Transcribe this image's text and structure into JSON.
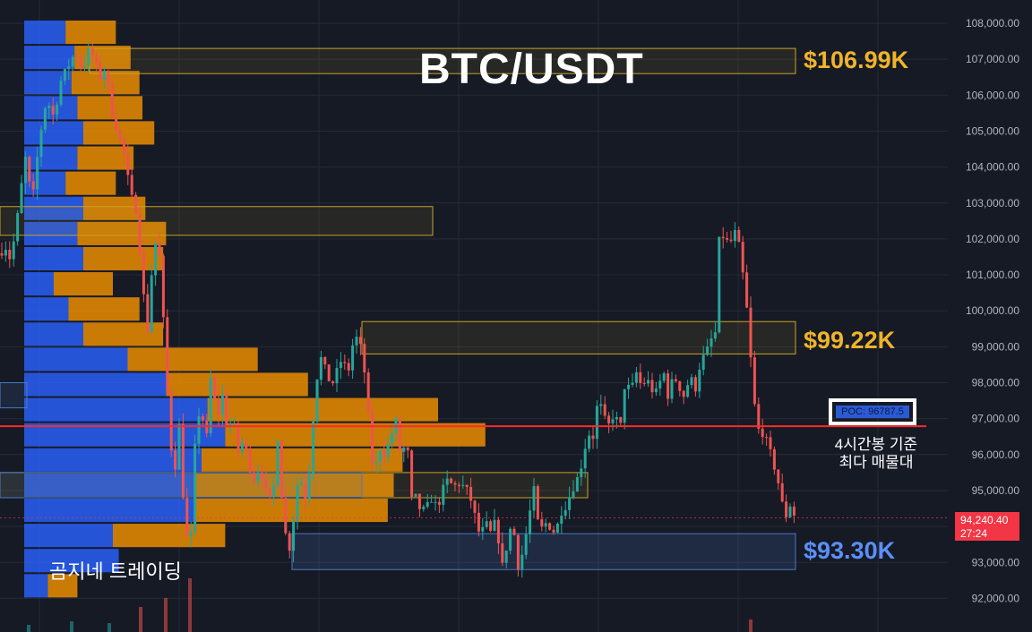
{
  "title": "BTC/USDT",
  "levels": [
    {
      "label": "$106.99K",
      "price": 106990,
      "color": "#f0b429"
    },
    {
      "label": "$99.22K",
      "price": 99220,
      "color": "#f0b429"
    },
    {
      "label": "$93.30K",
      "price": 93300,
      "color": "#5b8ff9"
    }
  ],
  "poc": {
    "label": "POC: 96787.5",
    "price": 96787.5,
    "note": "4시간봉 기준 최다 매물대"
  },
  "brand": "곰지네 트레이딩",
  "current_price": {
    "value": 94240.4,
    "label": "94,240.40",
    "countdown": "27:24"
  },
  "colors": {
    "background": "#161a25",
    "up": "#26a69a",
    "down": "#ef5350",
    "poc_line": "#ff2a2a",
    "vp_buy": "#2962ff",
    "vp_sell": "#f29100",
    "zone_gold": "#c9a227",
    "zone_blue": "#4a78c8",
    "axis_text": "#b2b5be"
  },
  "chart_data": {
    "type": "candlestick",
    "title": "BTC/USDT",
    "interval": "4시간봉",
    "y_axis": {
      "position": "right",
      "range": [
        91500,
        108300
      ],
      "ticks": [
        108000,
        107000,
        106000,
        105000,
        104000,
        103000,
        102000,
        101000,
        100000,
        99000,
        98000,
        97000,
        96000,
        95000,
        94000,
        93000,
        92000
      ],
      "tick_labels": [
        "108,000.00",
        "107,000.00",
        "106,000.00",
        "105,000.00",
        "104,000.00",
        "103,000.00",
        "102,000.00",
        "101,000.00",
        "100,000.00",
        "99,000.00",
        "98,000.00",
        "97,000.00",
        "96,000.00",
        "95,000.00",
        "94,000.00",
        "93,000.00",
        "92,000.00"
      ]
    },
    "grid": true,
    "candle_path": [
      [
        0,
        101600
      ],
      [
        6,
        101800
      ],
      [
        12,
        101400
      ],
      [
        20,
        102700
      ],
      [
        28,
        104300
      ],
      [
        36,
        103000
      ],
      [
        44,
        104800
      ],
      [
        52,
        105900
      ],
      [
        60,
        105400
      ],
      [
        68,
        106400
      ],
      [
        76,
        106800
      ],
      [
        84,
        107200
      ],
      [
        92,
        106700
      ],
      [
        100,
        107300
      ],
      [
        106,
        106900
      ],
      [
        112,
        106500
      ],
      [
        118,
        106800
      ],
      [
        124,
        105600
      ],
      [
        130,
        105100
      ],
      [
        138,
        104400
      ],
      [
        146,
        103200
      ],
      [
        152,
        102800
      ],
      [
        158,
        101200
      ],
      [
        164,
        99200
      ],
      [
        170,
        101300
      ],
      [
        176,
        102300
      ],
      [
        182,
        99900
      ],
      [
        188,
        97200
      ],
      [
        194,
        95300
      ],
      [
        200,
        96800
      ],
      [
        206,
        94200
      ],
      [
        212,
        93100
      ],
      [
        218,
        96400
      ],
      [
        224,
        97500
      ],
      [
        230,
        96200
      ],
      [
        236,
        98400
      ],
      [
        242,
        96900
      ],
      [
        248,
        97700
      ],
      [
        254,
        96700
      ],
      [
        260,
        97000
      ],
      [
        266,
        96100
      ],
      [
        272,
        96400
      ],
      [
        278,
        95700
      ],
      [
        284,
        95300
      ],
      [
        290,
        95700
      ],
      [
        296,
        95000
      ],
      [
        304,
        94600
      ],
      [
        310,
        96500
      ],
      [
        316,
        94300
      ],
      [
        322,
        93200
      ],
      [
        328,
        94300
      ],
      [
        334,
        95600
      ],
      [
        340,
        94700
      ],
      [
        346,
        95700
      ],
      [
        352,
        97900
      ],
      [
        358,
        98700
      ],
      [
        364,
        98300
      ],
      [
        370,
        97900
      ],
      [
        376,
        98300
      ],
      [
        382,
        98700
      ],
      [
        388,
        98200
      ],
      [
        394,
        99100
      ],
      [
        400,
        99300
      ],
      [
        406,
        98500
      ],
      [
        410,
        97500
      ],
      [
        414,
        96000
      ],
      [
        418,
        95500
      ],
      [
        424,
        96200
      ],
      [
        430,
        96000
      ],
      [
        436,
        96500
      ],
      [
        442,
        96900
      ],
      [
        448,
        95800
      ],
      [
        454,
        96600
      ],
      [
        458,
        94700
      ],
      [
        464,
        94800
      ],
      [
        470,
        94400
      ],
      [
        476,
        94500
      ],
      [
        482,
        94800
      ],
      [
        488,
        94500
      ],
      [
        494,
        95000
      ],
      [
        500,
        95300
      ],
      [
        506,
        95100
      ],
      [
        512,
        95200
      ],
      [
        518,
        95100
      ],
      [
        524,
        94900
      ],
      [
        530,
        94300
      ],
      [
        536,
        93700
      ],
      [
        542,
        94100
      ],
      [
        548,
        93800
      ],
      [
        554,
        94200
      ],
      [
        560,
        92800
      ],
      [
        566,
        93500
      ],
      [
        572,
        94200
      ],
      [
        578,
        92900
      ],
      [
        584,
        93300
      ],
      [
        590,
        94200
      ],
      [
        596,
        95000
      ],
      [
        602,
        93800
      ],
      [
        608,
        94100
      ],
      [
        614,
        94000
      ],
      [
        620,
        93800
      ],
      [
        626,
        94400
      ],
      [
        632,
        94600
      ],
      [
        638,
        95000
      ],
      [
        644,
        95300
      ],
      [
        650,
        95800
      ],
      [
        656,
        96600
      ],
      [
        662,
        96500
      ],
      [
        668,
        97600
      ],
      [
        674,
        97000
      ],
      [
        680,
        96800
      ],
      [
        686,
        97200
      ],
      [
        692,
        96600
      ],
      [
        698,
        98100
      ],
      [
        704,
        97700
      ],
      [
        710,
        98300
      ],
      [
        716,
        97900
      ],
      [
        722,
        98100
      ],
      [
        728,
        97800
      ],
      [
        734,
        97700
      ],
      [
        740,
        98400
      ],
      [
        746,
        97600
      ],
      [
        752,
        98200
      ],
      [
        758,
        97900
      ],
      [
        764,
        97600
      ],
      [
        770,
        98200
      ],
      [
        776,
        97800
      ],
      [
        782,
        98600
      ],
      [
        788,
        98800
      ],
      [
        794,
        99200
      ],
      [
        798,
        99100
      ],
      [
        802,
        101900
      ],
      [
        808,
        102100
      ],
      [
        814,
        101800
      ],
      [
        820,
        102200
      ],
      [
        826,
        101700
      ],
      [
        832,
        100400
      ],
      [
        836,
        99500
      ],
      [
        840,
        97800
      ],
      [
        846,
        96700
      ],
      [
        852,
        96600
      ],
      [
        858,
        96200
      ],
      [
        864,
        95700
      ],
      [
        870,
        95100
      ],
      [
        876,
        94200
      ],
      [
        882,
        94600
      ],
      [
        888,
        94240
      ]
    ],
    "volume_profile": {
      "buy_color": "#2962ff",
      "sell_color": "#f29100",
      "rows": [
        {
          "price_low": 92000,
          "price_high": 92700,
          "buy": 8,
          "sell": 10
        },
        {
          "price_low": 92700,
          "price_high": 93400,
          "buy": 32,
          "sell": 0
        },
        {
          "price_low": 93400,
          "price_high": 94100,
          "buy": 30,
          "sell": 38
        },
        {
          "price_low": 94100,
          "price_high": 94800,
          "buy": 58,
          "sell": 65
        },
        {
          "price_low": 94800,
          "price_high": 95500,
          "buy": 58,
          "sell": 67
        },
        {
          "price_low": 95500,
          "price_high": 96200,
          "buy": 60,
          "sell": 68
        },
        {
          "price_low": 96200,
          "price_high": 96900,
          "buy": 68,
          "sell": 88
        },
        {
          "price_low": 96900,
          "price_high": 97600,
          "buy": 62,
          "sell": 78
        },
        {
          "price_low": 97600,
          "price_high": 98300,
          "buy": 48,
          "sell": 48
        },
        {
          "price_low": 98300,
          "price_high": 99000,
          "buy": 35,
          "sell": 44
        },
        {
          "price_low": 99000,
          "price_high": 99700,
          "buy": 20,
          "sell": 27
        },
        {
          "price_low": 99700,
          "price_high": 100400,
          "buy": 15,
          "sell": 24
        },
        {
          "price_low": 100400,
          "price_high": 101100,
          "buy": 10,
          "sell": 20
        },
        {
          "price_low": 101100,
          "price_high": 101800,
          "buy": 20,
          "sell": 27
        },
        {
          "price_low": 101800,
          "price_high": 102500,
          "buy": 18,
          "sell": 30
        },
        {
          "price_low": 102500,
          "price_high": 103200,
          "buy": 20,
          "sell": 21
        },
        {
          "price_low": 103200,
          "price_high": 103900,
          "buy": 14,
          "sell": 17
        },
        {
          "price_low": 103900,
          "price_high": 104600,
          "buy": 18,
          "sell": 19
        },
        {
          "price_low": 104600,
          "price_high": 105300,
          "buy": 20,
          "sell": 24
        },
        {
          "price_low": 105300,
          "price_high": 106000,
          "buy": 18,
          "sell": 22
        },
        {
          "price_low": 106000,
          "price_high": 106700,
          "buy": 16,
          "sell": 23
        },
        {
          "price_low": 106700,
          "price_high": 107400,
          "buy": 17,
          "sell": 19
        },
        {
          "price_low": 107400,
          "price_high": 108100,
          "buy": 14,
          "sell": 17
        }
      ]
    },
    "zones": [
      {
        "type": "supply",
        "price_low": 106600,
        "price_high": 107300
      },
      {
        "type": "supply",
        "price_low": 102100,
        "price_high": 102900
      },
      {
        "type": "supply",
        "price_low": 98800,
        "price_high": 99700
      },
      {
        "type": "supply",
        "price_low": 94800,
        "price_high": 95500
      },
      {
        "type": "demand",
        "price_low": 92800,
        "price_high": 93800
      }
    ],
    "horizontal_lines": [
      {
        "name": "POC",
        "price": 96787.5,
        "color": "#ff2a2a"
      },
      {
        "name": "current",
        "price": 94240.4,
        "color": "#f23645",
        "style": "dotted"
      }
    ]
  }
}
